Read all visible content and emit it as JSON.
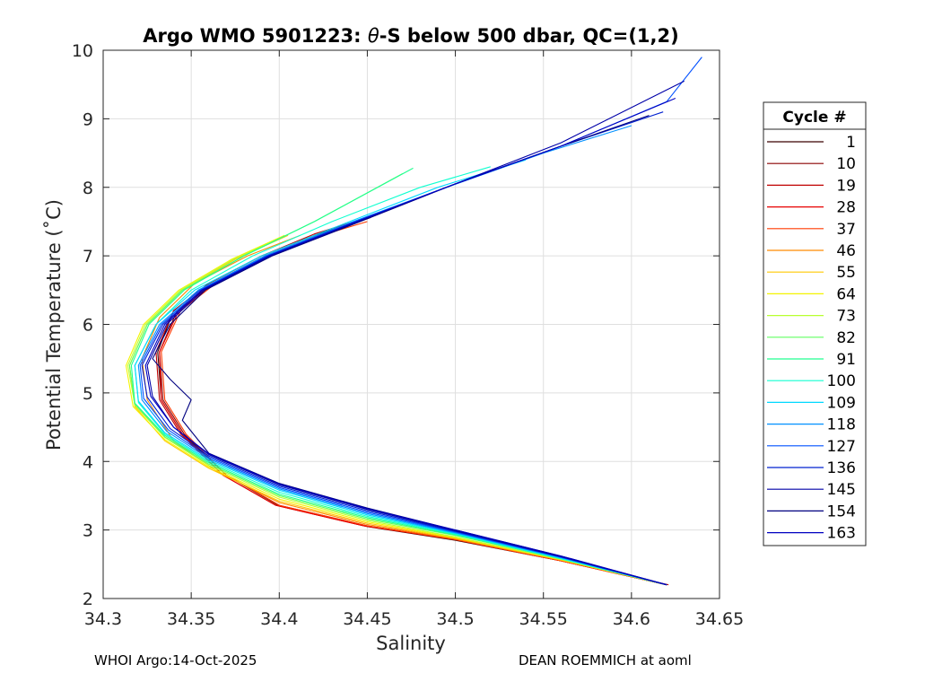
{
  "chart_data": {
    "type": "line",
    "title_prefix": "Argo WMO 5901223: ",
    "title_theta": "θ",
    "title_suffix": "-S below 500 dbar,  QC=(1,2)",
    "xlabel": "Salinity",
    "ylabel": "Potential Temperature (˚C)",
    "xlim": [
      34.3,
      34.65
    ],
    "ylim": [
      2,
      10
    ],
    "x_ticks": [
      "34.3",
      "34.35",
      "34.4",
      "34.45",
      "34.5",
      "34.55",
      "34.6",
      "34.65"
    ],
    "y_ticks": [
      "2",
      "3",
      "4",
      "5",
      "6",
      "7",
      "8",
      "9",
      "10"
    ],
    "grid": true,
    "legend_title": "Cycle #",
    "legend_position": "right-outside",
    "legend_entries": [
      "1",
      "10",
      "19",
      "28",
      "37",
      "46",
      "55",
      "64",
      "73",
      "82",
      "91",
      "100",
      "109",
      "118",
      "127",
      "136",
      "145",
      "154",
      "163"
    ],
    "legend_colors": [
      "#3a0000",
      "#8a0000",
      "#c00000",
      "#e80000",
      "#ff3a00",
      "#ff8a00",
      "#ffc800",
      "#f4f400",
      "#b8ff30",
      "#60ff60",
      "#20ff90",
      "#10ffd0",
      "#00d8ff",
      "#0090ff",
      "#0050ff",
      "#0020d0",
      "#0000a8",
      "#000080",
      "#0000c0"
    ],
    "series": [
      {
        "name": "1",
        "color": "#3a0000",
        "x": [
          34.62,
          34.56,
          34.5,
          34.45,
          34.4,
          34.37,
          34.345,
          34.333,
          34.331,
          34.34,
          34.36,
          34.39,
          34.42,
          34.45
        ],
        "y": [
          2.2,
          2.55,
          2.85,
          3.05,
          3.35,
          3.8,
          4.4,
          4.9,
          5.6,
          6.2,
          6.6,
          7.0,
          7.3,
          7.55
        ]
      },
      {
        "name": "10",
        "color": "#8a0000",
        "x": [
          34.62,
          34.56,
          34.5,
          34.45,
          34.4,
          34.37,
          34.346,
          34.334,
          34.332,
          34.342,
          34.362,
          34.392,
          34.422,
          34.452
        ],
        "y": [
          2.2,
          2.55,
          2.86,
          3.06,
          3.36,
          3.8,
          4.4,
          4.9,
          5.6,
          6.2,
          6.6,
          7.0,
          7.3,
          7.56
        ]
      },
      {
        "name": "19",
        "color": "#c00000",
        "x": [
          34.621,
          34.56,
          34.5,
          34.448,
          34.398,
          34.368,
          34.344,
          34.332,
          34.33,
          34.34,
          34.36,
          34.39,
          34.42,
          34.455
        ],
        "y": [
          2.2,
          2.55,
          2.86,
          3.06,
          3.36,
          3.8,
          4.4,
          4.9,
          5.6,
          6.2,
          6.6,
          7.0,
          7.32,
          7.6
        ]
      },
      {
        "name": "28",
        "color": "#e80000",
        "x": [
          34.62,
          34.56,
          34.5,
          34.448,
          34.398,
          34.368,
          34.345,
          34.333,
          34.332,
          34.343,
          34.363,
          34.393,
          34.425,
          34.46
        ],
        "y": [
          2.2,
          2.55,
          2.86,
          3.06,
          3.36,
          3.8,
          4.4,
          4.9,
          5.6,
          6.2,
          6.6,
          7.0,
          7.32,
          7.65
        ]
      },
      {
        "name": "37",
        "color": "#ff3a00",
        "x": [
          34.62,
          34.56,
          34.5,
          34.45,
          34.4,
          34.37,
          34.347,
          34.335,
          34.333,
          34.344,
          34.364,
          34.394,
          34.424,
          34.45
        ],
        "y": [
          2.2,
          2.55,
          2.86,
          3.06,
          3.36,
          3.8,
          4.4,
          4.9,
          5.6,
          6.2,
          6.6,
          7.0,
          7.3,
          7.5
        ]
      },
      {
        "name": "46",
        "color": "#ff8a00",
        "x": [
          34.62,
          34.56,
          34.5,
          34.45,
          34.4,
          34.365,
          34.34,
          34.325,
          34.322,
          34.332,
          34.352,
          34.382,
          34.412
        ],
        "y": [
          2.2,
          2.56,
          2.87,
          3.08,
          3.4,
          3.85,
          4.3,
          4.9,
          5.5,
          6.1,
          6.6,
          7.0,
          7.3
        ]
      },
      {
        "name": "55",
        "color": "#ffc800",
        "x": [
          34.62,
          34.56,
          34.5,
          34.45,
          34.4,
          34.36,
          34.335,
          34.318,
          34.315,
          34.325,
          34.345,
          34.375,
          34.405
        ],
        "y": [
          2.2,
          2.56,
          2.88,
          3.1,
          3.42,
          3.9,
          4.3,
          4.8,
          5.4,
          6.0,
          6.5,
          6.95,
          7.3
        ]
      },
      {
        "name": "64",
        "color": "#f4f400",
        "x": [
          34.62,
          34.56,
          34.5,
          34.45,
          34.4,
          34.36,
          34.335,
          34.317,
          34.313,
          34.323,
          34.343,
          34.373,
          34.403
        ],
        "y": [
          2.2,
          2.57,
          2.89,
          3.12,
          3.45,
          3.92,
          4.32,
          4.8,
          5.4,
          6.0,
          6.5,
          6.95,
          7.3
        ]
      },
      {
        "name": "73",
        "color": "#b8ff30",
        "x": [
          34.62,
          34.56,
          34.5,
          34.45,
          34.4,
          34.36,
          34.335,
          34.318,
          34.314,
          34.324,
          34.344,
          34.374,
          34.404
        ],
        "y": [
          2.2,
          2.57,
          2.9,
          3.14,
          3.48,
          3.94,
          4.35,
          4.82,
          5.4,
          6.0,
          6.5,
          6.95,
          7.3
        ]
      },
      {
        "name": "82",
        "color": "#60ff60",
        "x": [
          34.62,
          34.56,
          34.5,
          34.45,
          34.4,
          34.36,
          34.335,
          34.318,
          34.315,
          34.325,
          34.345,
          34.38,
          34.42,
          34.47
        ],
        "y": [
          2.2,
          2.58,
          2.92,
          3.16,
          3.5,
          3.96,
          4.36,
          4.84,
          5.4,
          6.0,
          6.5,
          7.0,
          7.5,
          8.2
        ]
      },
      {
        "name": "91",
        "color": "#20ff90",
        "x": [
          34.62,
          34.56,
          34.5,
          34.45,
          34.4,
          34.36,
          34.335,
          34.318,
          34.316,
          34.326,
          34.346,
          34.38,
          34.42,
          34.476
        ],
        "y": [
          2.2,
          2.58,
          2.93,
          3.18,
          3.52,
          3.98,
          4.38,
          4.85,
          5.4,
          6.0,
          6.5,
          7.0,
          7.5,
          8.28
        ]
      },
      {
        "name": "100",
        "color": "#10ffd0",
        "x": [
          34.62,
          34.56,
          34.5,
          34.45,
          34.4,
          34.36,
          34.335,
          34.32,
          34.318,
          34.33,
          34.35,
          34.385,
          34.43,
          34.48,
          34.52
        ],
        "y": [
          2.2,
          2.58,
          2.94,
          3.2,
          3.55,
          4.0,
          4.4,
          4.86,
          5.4,
          6.0,
          6.5,
          7.0,
          7.5,
          8.0,
          8.3
        ]
      },
      {
        "name": "109",
        "color": "#00d8ff",
        "x": [
          34.62,
          34.56,
          34.5,
          34.45,
          34.4,
          34.36,
          34.335,
          34.32,
          34.318,
          34.33,
          34.352,
          34.39,
          34.44,
          34.49,
          34.54
        ],
        "y": [
          2.2,
          2.59,
          2.95,
          3.22,
          3.58,
          4.02,
          4.42,
          4.88,
          5.4,
          6.0,
          6.5,
          7.0,
          7.5,
          8.0,
          8.4
        ]
      },
      {
        "name": "118",
        "color": "#0090ff",
        "x": [
          34.62,
          34.56,
          34.5,
          34.45,
          34.4,
          34.36,
          34.336,
          34.322,
          34.32,
          34.332,
          34.354,
          34.392,
          34.442,
          34.495,
          34.55,
          34.6
        ],
        "y": [
          2.2,
          2.6,
          2.96,
          3.24,
          3.6,
          4.04,
          4.44,
          4.9,
          5.4,
          6.0,
          6.5,
          7.0,
          7.5,
          8.0,
          8.5,
          8.9
        ]
      },
      {
        "name": "127",
        "color": "#0050ff",
        "x": [
          34.62,
          34.56,
          34.5,
          34.45,
          34.4,
          34.36,
          34.337,
          34.323,
          34.321,
          34.333,
          34.355,
          34.393,
          34.443,
          34.5,
          34.56,
          34.62,
          34.64
        ],
        "y": [
          2.2,
          2.6,
          2.97,
          3.26,
          3.62,
          4.06,
          4.46,
          4.92,
          5.4,
          6.0,
          6.5,
          7.0,
          7.5,
          8.05,
          8.6,
          9.25,
          9.9
        ]
      },
      {
        "name": "136",
        "color": "#0020d0",
        "x": [
          34.62,
          34.56,
          34.5,
          34.45,
          34.4,
          34.36,
          34.338,
          34.325,
          34.322,
          34.334,
          34.356,
          34.394,
          34.444,
          34.5,
          34.56,
          34.618
        ],
        "y": [
          2.2,
          2.61,
          2.98,
          3.28,
          3.64,
          4.08,
          4.48,
          4.94,
          5.4,
          6.0,
          6.5,
          7.0,
          7.5,
          8.05,
          8.6,
          9.1
        ]
      },
      {
        "name": "145",
        "color": "#0000a8",
        "x": [
          34.62,
          34.56,
          34.5,
          34.45,
          34.4,
          34.36,
          34.34,
          34.328,
          34.325,
          34.336,
          34.357,
          34.395,
          34.445,
          34.5,
          34.56,
          34.63
        ],
        "y": [
          2.2,
          2.61,
          2.99,
          3.3,
          3.66,
          4.1,
          4.5,
          4.95,
          5.4,
          6.0,
          6.5,
          7.0,
          7.5,
          8.05,
          8.65,
          9.55
        ]
      },
      {
        "name": "154",
        "color": "#000080",
        "x": [
          34.62,
          34.56,
          34.5,
          34.45,
          34.4,
          34.36,
          34.345,
          34.35,
          34.338,
          34.328,
          34.338,
          34.358,
          34.396,
          34.446,
          34.5,
          34.56,
          34.61
        ],
        "y": [
          2.2,
          2.62,
          3.0,
          3.32,
          3.68,
          4.12,
          4.6,
          4.9,
          5.2,
          5.5,
          6.0,
          6.5,
          7.0,
          7.5,
          8.05,
          8.6,
          9.05
        ]
      },
      {
        "name": "163",
        "color": "#0000c0",
        "x": [
          34.62,
          34.56,
          34.5,
          34.45,
          34.4,
          34.36,
          34.34,
          34.327,
          34.324,
          34.335,
          34.356,
          34.394,
          34.444,
          34.5,
          34.56,
          34.625
        ],
        "y": [
          2.2,
          2.62,
          3.0,
          3.31,
          3.67,
          4.11,
          4.5,
          4.95,
          5.4,
          6.0,
          6.5,
          7.0,
          7.5,
          8.05,
          8.6,
          9.3
        ]
      }
    ]
  },
  "footer": {
    "left": "WHOI Argo:14-Oct-2025",
    "right": "DEAN ROEMMICH at aoml"
  }
}
